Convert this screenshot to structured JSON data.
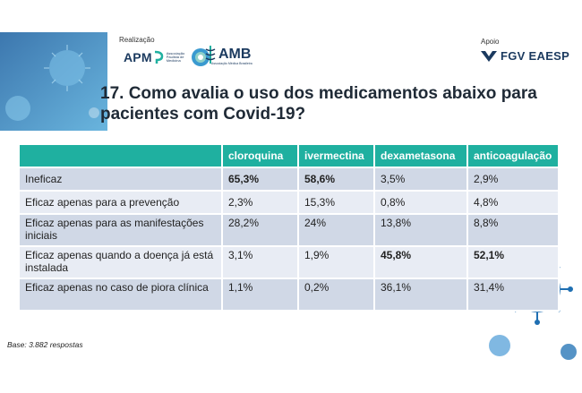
{
  "header": {
    "realizacao_label": "Realização",
    "apoio_label": "Apoio",
    "logos": [
      {
        "name": "APM",
        "text": "APM",
        "small": "Associação Paulista de Medicina"
      },
      {
        "name": "AMB",
        "text": "AMB",
        "small": "Associação Médica Brasileira"
      },
      {
        "name": "FGV EAESP",
        "text": "FGV EAESP"
      }
    ]
  },
  "title": "17. Como avalia o uso dos medicamentos abaixo para pacientes com Covid-19?",
  "chart_data": {
    "type": "table",
    "columns": [
      "",
      "cloroquina",
      "ivermectina",
      "dexametasona",
      "anticoagulação"
    ],
    "rows": [
      {
        "label": "Ineficaz",
        "values": [
          "65,3%",
          "58,6%",
          "3,5%",
          "2,9%"
        ],
        "bold": [
          true,
          true,
          false,
          false
        ]
      },
      {
        "label": "Eficaz apenas para a prevenção",
        "values": [
          "2,3%",
          "15,3%",
          "0,8%",
          "4,8%"
        ],
        "bold": [
          false,
          false,
          false,
          false
        ]
      },
      {
        "label": "Eficaz apenas para as manifestações iniciais",
        "values": [
          "28,2%",
          "24%",
          "13,8%",
          "8,8%"
        ],
        "bold": [
          false,
          false,
          false,
          false
        ]
      },
      {
        "label": "Eficaz apenas quando a doença já está instalada",
        "values": [
          "3,1%",
          "1,9%",
          "45,8%",
          "52,1%"
        ],
        "bold": [
          false,
          false,
          true,
          true
        ]
      },
      {
        "label": "Eficaz apenas no caso de piora clínica",
        "values": [
          "1,1%",
          "0,2%",
          "36,1%",
          "31,4%"
        ],
        "bold": [
          false,
          false,
          false,
          false
        ]
      }
    ]
  },
  "footer": {
    "base": "Base: 3.882 respostas"
  },
  "colors": {
    "header_teal": "#1fb0a0",
    "row_dark": "#d0d8e6",
    "row_light": "#e8ecf4",
    "brand_navy": "#1b3a5f",
    "virus_blue": "#2a78b8"
  }
}
